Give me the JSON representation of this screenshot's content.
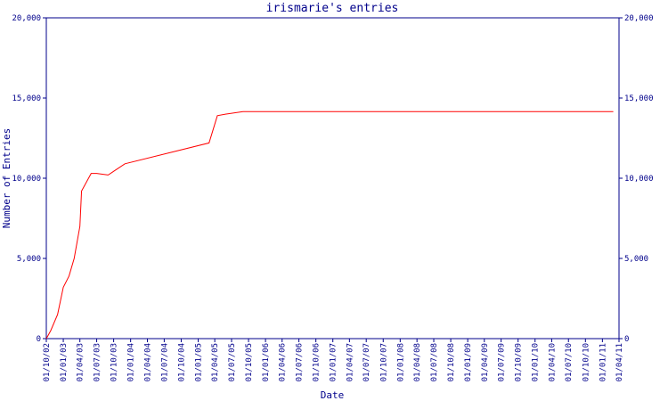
{
  "chart_data": {
    "type": "line",
    "title": "irismarie's entries",
    "x_label": "Date",
    "y_label": "Number of Entries",
    "x": [
      "01/10/02",
      "25/10/02",
      "01/12/02",
      "01/01/03",
      "01/02/03",
      "01/03/03",
      "01/04/03",
      "10/04/03",
      "01/06/03",
      "01/07/03",
      "01/09/03",
      "01/12/03",
      "01/03/05",
      "15/04/05",
      "01/06/05",
      "01/09/05",
      "01/03/11"
    ],
    "series": [
      {
        "name": "irismarie",
        "color": "#ff0000",
        "values": [
          0,
          500,
          1500,
          3200,
          3900,
          5000,
          7000,
          9200,
          10300,
          10300,
          10200,
          10900,
          12200,
          13900,
          14000,
          14150,
          14150
        ]
      }
    ],
    "xlim": [
      "01/10/02",
      "01/04/11"
    ],
    "xticks": [
      "01/10/02",
      "01/01/03",
      "01/04/03",
      "01/07/03",
      "01/10/03",
      "01/01/04",
      "01/04/04",
      "01/07/04",
      "01/10/04",
      "01/01/05",
      "01/04/05",
      "01/07/05",
      "01/10/05",
      "01/01/06",
      "01/04/06",
      "01/07/06",
      "01/10/06",
      "01/01/07",
      "01/04/07",
      "01/07/07",
      "01/10/07",
      "01/01/08",
      "01/04/08",
      "01/07/08",
      "01/10/08",
      "01/01/09",
      "01/04/09",
      "01/07/09",
      "01/10/09",
      "01/01/10",
      "01/04/10",
      "01/07/10",
      "01/10/10",
      "01/01/11",
      "01/04/11"
    ],
    "ylim": [
      0,
      20000
    ],
    "yticks": [
      0,
      {
        "value": 5000,
        "label": "5,000"
      },
      {
        "value": 10000,
        "label": "10,000"
      },
      {
        "value": 15000,
        "label": "15,000"
      },
      {
        "value": 20000,
        "label": "20,000"
      }
    ],
    "axis_color": "#00008b"
  }
}
